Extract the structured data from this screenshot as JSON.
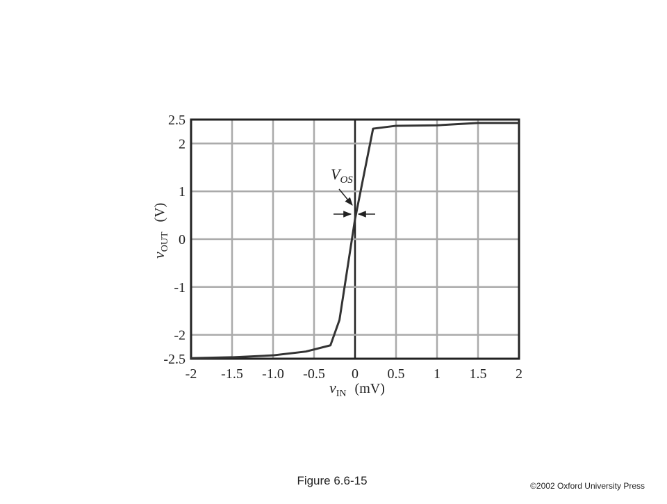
{
  "chart_data": {
    "type": "line",
    "x": [
      -2,
      -1.5,
      -1,
      -0.6,
      -0.3,
      -0.19,
      0,
      0.22,
      0.5,
      1,
      1.5,
      2
    ],
    "values": [
      -2.49,
      -2.47,
      -2.43,
      -2.35,
      -2.22,
      -1.69,
      0.42,
      2.31,
      2.37,
      2.38,
      2.43,
      2.43
    ],
    "color": "#333333",
    "xlim": [
      -2,
      2
    ],
    "ylim": [
      -2.5,
      2.5
    ],
    "xticks": [
      -2,
      -1.5,
      {
        "value": -1,
        "label": "-1.0"
      },
      -0.5,
      0,
      0.5,
      1,
      1.5,
      2
    ],
    "yticks": [
      2.5,
      2,
      1,
      0,
      -1,
      -2,
      -2.5
    ],
    "grid": true,
    "x_label": {
      "symbol": "v",
      "subscript": "IN",
      "unit": "(mV)"
    },
    "y_label": {
      "symbol": "v",
      "subscript": "OUT",
      "unit": "(V)"
    },
    "annotation": {
      "symbol": "V",
      "subscript": "OS"
    },
    "caption": "Figure 6.6-15",
    "credit": "©2002 Oxford University Press"
  }
}
